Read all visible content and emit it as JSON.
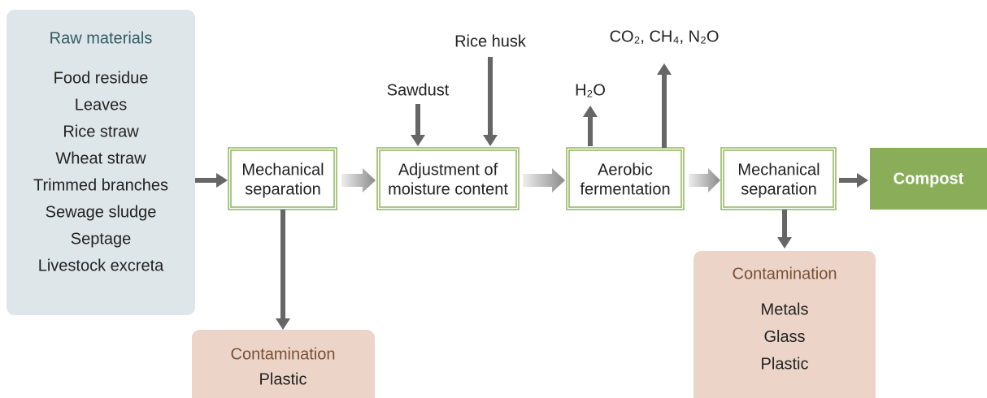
{
  "raw_materials": {
    "title": "Raw materials",
    "items": [
      "Food residue",
      "Leaves",
      "Rice straw",
      "Wheat straw",
      "Trimmed branches",
      "Sewage sludge",
      "Septage",
      "Livestock excreta"
    ]
  },
  "steps": [
    {
      "lines": [
        "Mechanical",
        "separation"
      ]
    },
    {
      "lines": [
        "Adjustment of",
        "moisture content"
      ]
    },
    {
      "lines": [
        "Aerobic",
        "fermentation"
      ]
    },
    {
      "lines": [
        "Mechanical",
        "separation"
      ]
    }
  ],
  "product": "Compost",
  "inputs": [
    "Sawdust",
    "Rice husk"
  ],
  "outputs": [
    "H₂O",
    "CO₂, CH₄, N₂O"
  ],
  "contamination": [
    {
      "title": "Contamination",
      "items": [
        "Plastic"
      ]
    },
    {
      "title": "Contamination",
      "items": [
        "Metals",
        "Glass",
        "Plastic"
      ]
    }
  ]
}
